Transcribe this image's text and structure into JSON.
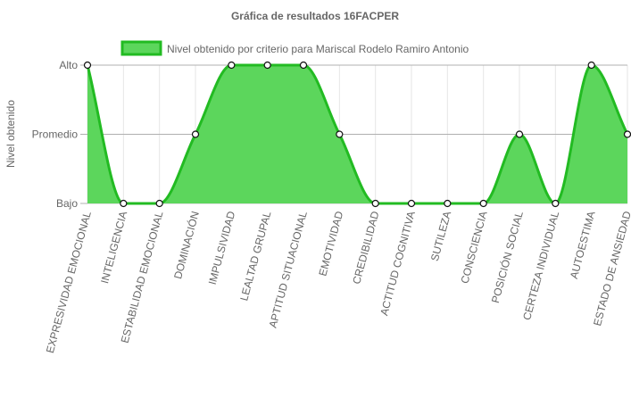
{
  "chart_data": {
    "type": "area",
    "title": "Gráfica de resultados 16FACPER",
    "ylabel": "Nivel obtenido",
    "xlabel": "",
    "y_levels": [
      "Bajo",
      "Promedio",
      "Alto"
    ],
    "ylim": [
      0,
      2
    ],
    "grid": true,
    "legend_position": "top",
    "categories": [
      "EXPRESIVIDAD EMOCIONAL",
      "INTELIGENCIA",
      "ESTABILIDAD EMOCIONAL",
      "DOMINACIÓN",
      "IMPULSIVIDAD",
      "LEALTAD GRUPAL",
      "APTITUD SITUACIONAL",
      "EMOTIVIDAD",
      "CREDIBILIDAD",
      "ACTITUD COGNITIVA",
      "SUTILEZA",
      "CONSCIENCIA",
      "POSICIÓN SOCIAL",
      "CERTEZA INDIVIDUAL",
      "AUTOESTIMA",
      "ESTADO DE ANSIEDAD"
    ],
    "series": [
      {
        "name": "Nivel obtenido por criterio para Mariscal Rodelo Ramiro Antonio",
        "values": [
          2,
          0,
          0,
          1,
          2,
          2,
          2,
          1,
          0,
          0,
          0,
          0,
          1,
          0,
          2,
          1
        ],
        "color": "#5cd65c",
        "line_color": "#22bb22"
      }
    ]
  }
}
